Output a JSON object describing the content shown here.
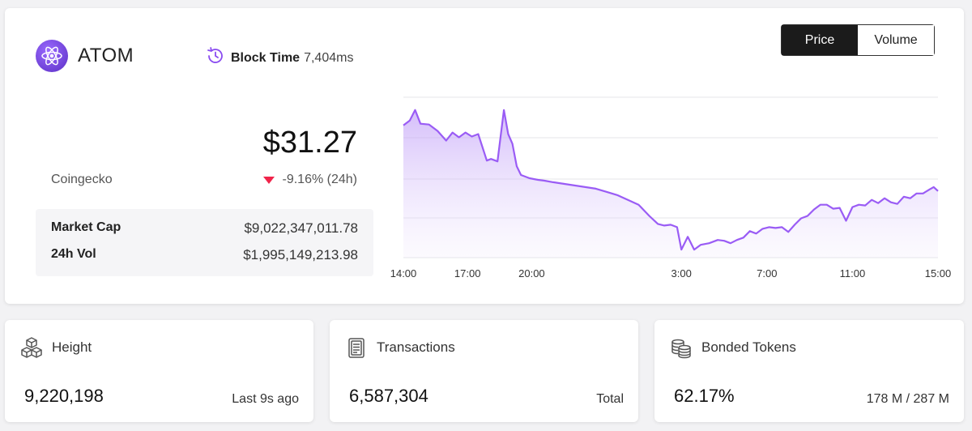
{
  "header": {
    "coin_name": "ATOM",
    "block_time_label": "Block Time",
    "block_time_value": "7,404ms"
  },
  "price": {
    "value": "$31.27",
    "source": "Coingecko",
    "change": "-9.16% (24h)",
    "change_direction": "down",
    "down_color": "#f0244a"
  },
  "stats": {
    "market_cap_label": "Market Cap",
    "market_cap_value": "$9,022,347,011.78",
    "vol_label": "24h Vol",
    "vol_value": "$1,995,149,213.98"
  },
  "toggle": {
    "price_label": "Price",
    "volume_label": "Volume",
    "selected": "Price"
  },
  "chart_data": {
    "type": "area",
    "title": "",
    "xlabel": "",
    "ylabel": "",
    "grid": true,
    "color": "#9a5cf5",
    "x_tick_labels": [
      "14:00",
      "17:00",
      "20:00",
      "3:00",
      "7:00",
      "11:00",
      "15:00"
    ],
    "x_tick_hours": [
      0,
      3,
      6,
      13,
      17,
      21,
      25
    ],
    "ylim": [
      0,
      1
    ],
    "series": [
      {
        "x": [
          0,
          0.3,
          0.55,
          0.8,
          1.2,
          1.6,
          2.0,
          2.3,
          2.6,
          2.9,
          3.2,
          3.5,
          3.9,
          4.1,
          4.4,
          4.7,
          4.9,
          5.1,
          5.3,
          5.5,
          5.7,
          5.9,
          6.1,
          6.3,
          6.6,
          7,
          7.5,
          8,
          8.5,
          9,
          9.5,
          10,
          10.5,
          11,
          11.5,
          11.9,
          12.2,
          12.5,
          12.8,
          13.0,
          13.3,
          13.6,
          13.9,
          14.3,
          14.7,
          15.0,
          15.3,
          15.6,
          15.9,
          16.2,
          16.5,
          16.8,
          17.1,
          17.4,
          17.7,
          18.0,
          18.3,
          18.6,
          18.9,
          19.2,
          19.5,
          19.8,
          20.1,
          20.4,
          20.7,
          21.0,
          21.3,
          21.6,
          21.9,
          22.2,
          22.5,
          22.8,
          23.1,
          23.4,
          23.7,
          24.0,
          24.3,
          24.6,
          24.8,
          25.0
        ],
        "y": [
          0.825,
          0.855,
          0.92,
          0.835,
          0.83,
          0.79,
          0.73,
          0.78,
          0.75,
          0.78,
          0.755,
          0.77,
          0.605,
          0.615,
          0.6,
          0.92,
          0.77,
          0.71,
          0.57,
          0.515,
          0.505,
          0.495,
          0.49,
          0.485,
          0.48,
          0.47,
          0.46,
          0.45,
          0.44,
          0.43,
          0.41,
          0.39,
          0.36,
          0.33,
          0.26,
          0.21,
          0.2,
          0.205,
          0.19,
          0.05,
          0.13,
          0.05,
          0.08,
          0.09,
          0.11,
          0.105,
          0.09,
          0.11,
          0.125,
          0.165,
          0.15,
          0.18,
          0.19,
          0.185,
          0.19,
          0.16,
          0.205,
          0.245,
          0.26,
          0.3,
          0.33,
          0.33,
          0.305,
          0.31,
          0.23,
          0.315,
          0.33,
          0.325,
          0.36,
          0.34,
          0.37,
          0.345,
          0.335,
          0.38,
          0.37,
          0.4,
          0.4,
          0.425,
          0.44,
          0.415
        ]
      }
    ]
  },
  "cards": [
    {
      "icon": "blocks-icon",
      "label": "Height",
      "value": "9,220,198",
      "sub": "Last 9s ago"
    },
    {
      "icon": "document-icon",
      "label": "Transactions",
      "value": "6,587,304",
      "sub": "Total"
    },
    {
      "icon": "coins-icon",
      "label": "Bonded Tokens",
      "value": "62.17%",
      "sub": "178 M / 287 M"
    }
  ]
}
